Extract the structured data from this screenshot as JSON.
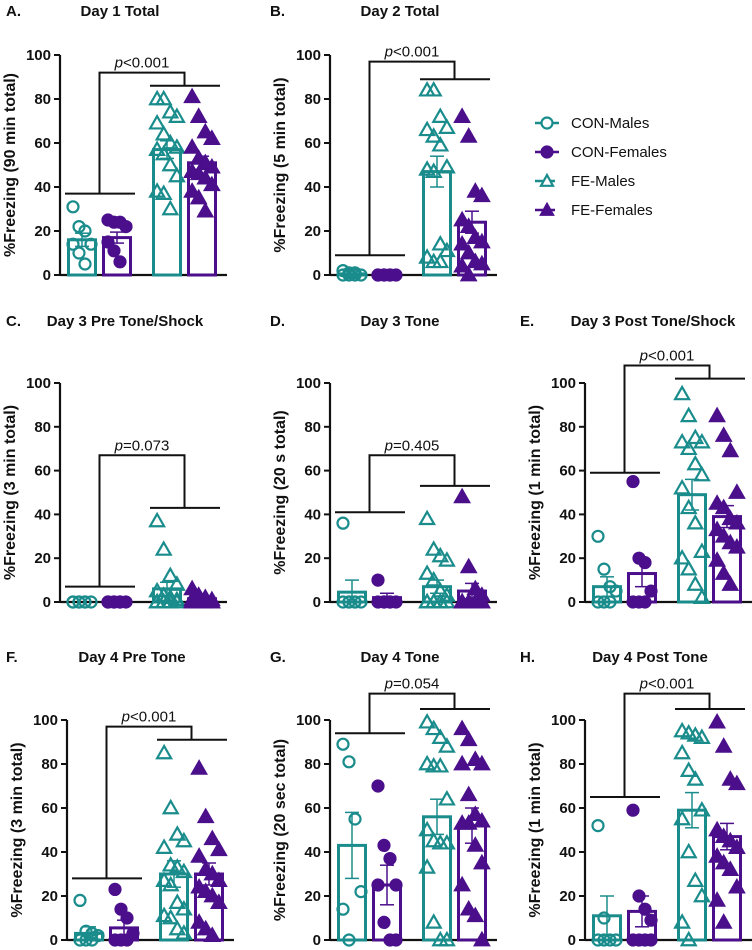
{
  "colors": {
    "teal": "#1a8c8c",
    "purple": "#4b0f8c",
    "axis": "#111111"
  },
  "legend": [
    {
      "label": "CON-Males",
      "marker": "open-circle",
      "color": "#1a8c8c"
    },
    {
      "label": "CON-Females",
      "marker": "filled-circle",
      "color": "#4b0f8c"
    },
    {
      "label": "FE-Males",
      "marker": "open-triangle",
      "color": "#1a8c8c"
    },
    {
      "label": "FE-Females",
      "marker": "filled-triangle",
      "color": "#4b0f8c"
    }
  ],
  "chart_data": [
    {
      "panel": "A.",
      "title": "Day 1 Total",
      "type": "bar",
      "ylabel": "%Freezing (90 min total)",
      "ylim": [
        0,
        100
      ],
      "yticks": [
        0,
        20,
        40,
        60,
        80,
        100
      ],
      "pvalue": "<0.001",
      "groups": [
        {
          "name": "CON-Males",
          "mean": 16,
          "sem": 3,
          "points": [
            31,
            22,
            20,
            14,
            14,
            10,
            5
          ]
        },
        {
          "name": "CON-Females",
          "mean": 17,
          "sem": 2.5,
          "points": [
            25,
            24,
            24,
            22,
            15,
            11,
            6
          ]
        },
        {
          "name": "FE-Males",
          "mean": 57,
          "sem": 4,
          "points": [
            80,
            80,
            74,
            72,
            69,
            64,
            60,
            58,
            57,
            55,
            50,
            45,
            38,
            37,
            30
          ]
        },
        {
          "name": "FE-Females",
          "mean": 51,
          "sem": 3,
          "points": [
            81,
            72,
            65,
            62,
            58,
            53,
            51,
            49,
            47,
            46,
            44,
            41,
            38,
            35,
            29
          ]
        }
      ]
    },
    {
      "panel": "B.",
      "title": "Day 2 Total",
      "type": "bar",
      "ylabel": "%Freezing (5 min total)",
      "ylim": [
        0,
        100
      ],
      "yticks": [
        0,
        20,
        40,
        60,
        80,
        100
      ],
      "pvalue": "<0.001",
      "groups": [
        {
          "name": "CON-Males",
          "mean": 0.5,
          "sem": 0.3,
          "points": [
            2,
            1,
            1,
            0,
            0,
            0,
            0
          ]
        },
        {
          "name": "CON-Females",
          "mean": 0,
          "sem": 0,
          "points": [
            0,
            0,
            0,
            0,
            0,
            0,
            0
          ]
        },
        {
          "name": "FE-Males",
          "mean": 47,
          "sem": 7,
          "points": [
            84,
            84,
            72,
            67,
            66,
            63,
            59,
            49,
            48,
            47,
            14,
            11,
            8,
            6,
            6
          ]
        },
        {
          "name": "FE-Females",
          "mean": 24,
          "sem": 5,
          "points": [
            72,
            63,
            38,
            36,
            25,
            22,
            17,
            15,
            14,
            10,
            6,
            5,
            4,
            0
          ]
        }
      ]
    },
    {
      "panel": "C.",
      "title": "Day 3 Pre Tone/Shock",
      "type": "bar",
      "ylabel": "%Freezing (3 min total)",
      "ylim": [
        0,
        100
      ],
      "yticks": [
        0,
        20,
        40,
        60,
        80,
        100
      ],
      "pvalue": "=0.073",
      "groups": [
        {
          "name": "CON-Males",
          "mean": 0,
          "sem": 0,
          "points": [
            0,
            0,
            0,
            0,
            0,
            0,
            0
          ]
        },
        {
          "name": "CON-Females",
          "mean": 0,
          "sem": 0,
          "points": [
            0,
            0,
            0,
            0,
            0,
            0,
            0
          ]
        },
        {
          "name": "FE-Males",
          "mean": 6,
          "sem": 3,
          "points": [
            37,
            24,
            12,
            8,
            5,
            3,
            2,
            1,
            0,
            0,
            0,
            0,
            0,
            0,
            0
          ]
        },
        {
          "name": "FE-Females",
          "mean": 1.5,
          "sem": 0.6,
          "points": [
            6,
            3,
            2,
            1,
            1,
            0,
            0,
            0,
            0,
            0,
            0,
            0,
            0,
            0,
            0
          ]
        }
      ]
    },
    {
      "panel": "D.",
      "title": "Day 3 Tone",
      "type": "bar",
      "ylabel": "%Freezing (20 s total)",
      "ylim": [
        0,
        100
      ],
      "yticks": [
        0,
        20,
        40,
        60,
        80,
        100
      ],
      "pvalue": "=0.405",
      "groups": [
        {
          "name": "CON-Males",
          "mean": 4.5,
          "sem": 5.5,
          "points": [
            36,
            0,
            0,
            0,
            0,
            0,
            0
          ]
        },
        {
          "name": "CON-Females",
          "mean": 2,
          "sem": 2,
          "points": [
            10,
            0,
            0,
            0,
            0,
            0,
            0
          ]
        },
        {
          "name": "FE-Males",
          "mean": 7,
          "sem": 3,
          "points": [
            38,
            24,
            21,
            19,
            13,
            10,
            5,
            3,
            0,
            0,
            0,
            0,
            0,
            0,
            0
          ]
        },
        {
          "name": "FE-Females",
          "mean": 5,
          "sem": 3.5,
          "points": [
            48,
            16,
            6,
            3,
            0,
            0,
            0,
            0,
            0,
            0,
            0,
            0,
            0,
            0
          ]
        }
      ]
    },
    {
      "panel": "E.",
      "title": "Day 3 Post Tone/Shock",
      "type": "bar",
      "ylabel": "%Freezing (1 min total)",
      "ylim": [
        0,
        100
      ],
      "yticks": [
        0,
        20,
        40,
        60,
        80,
        100
      ],
      "pvalue": "<0.001",
      "groups": [
        {
          "name": "CON-Males",
          "mean": 7,
          "sem": 4.5,
          "points": [
            30,
            15,
            7,
            5,
            0,
            0,
            0
          ]
        },
        {
          "name": "CON-Females",
          "mean": 13,
          "sem": 6,
          "points": [
            55,
            20,
            18,
            5,
            0,
            0,
            0
          ]
        },
        {
          "name": "FE-Males",
          "mean": 49,
          "sem": 7,
          "points": [
            95,
            85,
            75,
            73,
            73,
            70,
            63,
            58,
            52,
            43,
            36,
            23,
            20,
            15,
            8,
            2
          ]
        },
        {
          "name": "FE-Females",
          "mean": 39,
          "sem": 5,
          "points": [
            85,
            76,
            69,
            50,
            45,
            43,
            38,
            36,
            33,
            30,
            27,
            25,
            19,
            13,
            8
          ]
        }
      ]
    },
    {
      "panel": "F.",
      "title": "Day 4 Pre Tone",
      "type": "bar",
      "ylabel": "%Freezing (3 min total)",
      "ylim": [
        0,
        100
      ],
      "yticks": [
        0,
        20,
        40,
        60,
        80,
        100
      ],
      "pvalue": "<0.001",
      "groups": [
        {
          "name": "CON-Males",
          "mean": 3,
          "sem": 3,
          "points": [
            18,
            4,
            3,
            2,
            0,
            0,
            0
          ]
        },
        {
          "name": "CON-Females",
          "mean": 5.5,
          "sem": 3.5,
          "points": [
            23,
            14,
            10,
            3,
            0,
            0,
            0
          ]
        },
        {
          "name": "FE-Males",
          "mean": 30,
          "sem": 6,
          "points": [
            85,
            60,
            48,
            45,
            42,
            34,
            33,
            31,
            27,
            25,
            17,
            14,
            11,
            10,
            5,
            3
          ]
        },
        {
          "name": "FE-Females",
          "mean": 30,
          "sem": 5,
          "points": [
            78,
            56,
            46,
            41,
            38,
            32,
            30,
            27,
            24,
            22,
            20,
            17,
            8,
            5,
            2
          ]
        }
      ]
    },
    {
      "panel": "G.",
      "title": "Day 4 Tone",
      "type": "bar",
      "ylabel": "%Freezing (20 sec  total)",
      "ylim": [
        0,
        100
      ],
      "yticks": [
        0,
        20,
        40,
        60,
        80,
        100
      ],
      "pvalue": "=0.054",
      "groups": [
        {
          "name": "CON-Males",
          "mean": 43,
          "sem": 15,
          "points": [
            89,
            81,
            55,
            22,
            14,
            0
          ]
        },
        {
          "name": "CON-Females",
          "mean": 25,
          "sem": 9,
          "points": [
            70,
            43,
            37,
            25,
            25,
            8,
            0,
            0
          ]
        },
        {
          "name": "FE-Males",
          "mean": 56,
          "sem": 8,
          "points": [
            99,
            96,
            92,
            88,
            80,
            79,
            79,
            64,
            50,
            45,
            44,
            44,
            33,
            8,
            0,
            0
          ]
        },
        {
          "name": "FE-Females",
          "mean": 52,
          "sem": 8,
          "points": [
            96,
            91,
            82,
            80,
            80,
            66,
            57,
            54,
            53,
            53,
            43,
            35,
            25,
            14,
            11,
            0
          ]
        }
      ]
    },
    {
      "panel": "H.",
      "title": "Day 4 Post Tone",
      "type": "bar",
      "ylabel": "%Freezing (1 min total)",
      "ylim": [
        0,
        100
      ],
      "yticks": [
        0,
        20,
        40,
        60,
        80,
        100
      ],
      "pvalue": "<0.001",
      "groups": [
        {
          "name": "CON-Males",
          "mean": 11,
          "sem": 9,
          "points": [
            52,
            10,
            0,
            0,
            0,
            0
          ]
        },
        {
          "name": "CON-Females",
          "mean": 13,
          "sem": 7,
          "points": [
            59,
            20,
            14,
            9,
            0,
            0,
            0,
            0
          ]
        },
        {
          "name": "FE-Males",
          "mean": 59,
          "sem": 8,
          "points": [
            95,
            94,
            93,
            92,
            85,
            77,
            73,
            59,
            55,
            40,
            27,
            20,
            8,
            0
          ]
        },
        {
          "name": "FE-Females",
          "mean": 47,
          "sem": 6,
          "points": [
            99,
            88,
            73,
            71,
            50,
            47,
            45,
            42,
            38,
            35,
            32,
            24,
            18,
            8
          ]
        }
      ]
    }
  ]
}
